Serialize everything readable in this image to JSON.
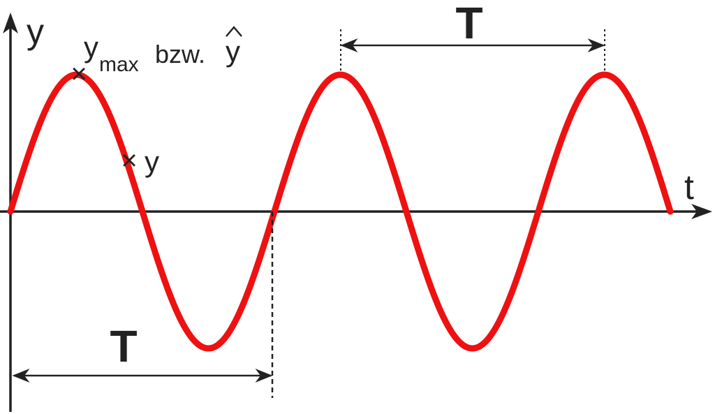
{
  "labels": {
    "y_axis": "y",
    "t_axis": "t",
    "ymax_base": "y",
    "ymax_sub": "max",
    "bzw": "bzw.",
    "yhat_base": "y",
    "yhat_accent": "^",
    "y_point": "y",
    "period_bottom": "T",
    "period_top": "T"
  },
  "markers": {
    "cross_symbol": "×"
  },
  "colors": {
    "wave": "#ee1111",
    "axis": "#222222",
    "dashed_line": "#222222"
  },
  "wave": {
    "periods_shown": 2.5,
    "amplitude": 1
  }
}
